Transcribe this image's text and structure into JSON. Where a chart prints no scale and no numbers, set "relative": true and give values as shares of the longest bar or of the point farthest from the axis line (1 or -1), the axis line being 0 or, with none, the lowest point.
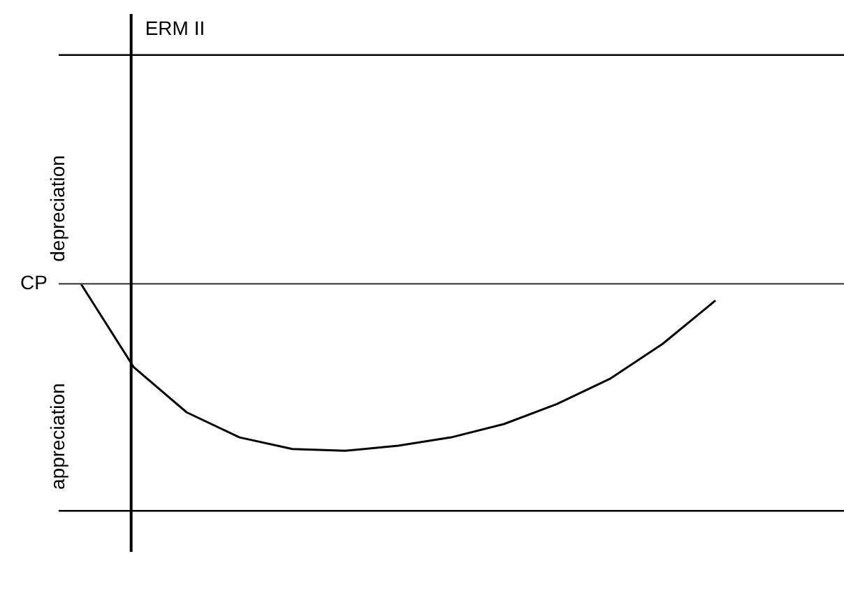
{
  "chart_data": {
    "type": "line",
    "relative": true,
    "categories": [
      null,
      null,
      null,
      null,
      null,
      null,
      null,
      null,
      null,
      null,
      null,
      null,
      null
    ],
    "series": [
      {
        "color": "#000000",
        "values": [
          0,
          -0.5,
          -0.77,
          -0.92,
          -0.99,
          -1,
          -0.97,
          -0.92,
          -0.84,
          -0.72,
          -0.57,
          -0.36,
          -0.1
        ]
      }
    ],
    "ref_lines": [
      {
        "axis": "y",
        "value": 1.37,
        "label": null,
        "color": "#000000"
      },
      {
        "axis": "y",
        "value": 0,
        "label": "CP",
        "color": "#555555"
      },
      {
        "axis": "y",
        "value": -1.36,
        "label": null,
        "color": "#000000"
      }
    ],
    "annotations": [
      "ERM II",
      "depreciation",
      "appreciation"
    ]
  }
}
